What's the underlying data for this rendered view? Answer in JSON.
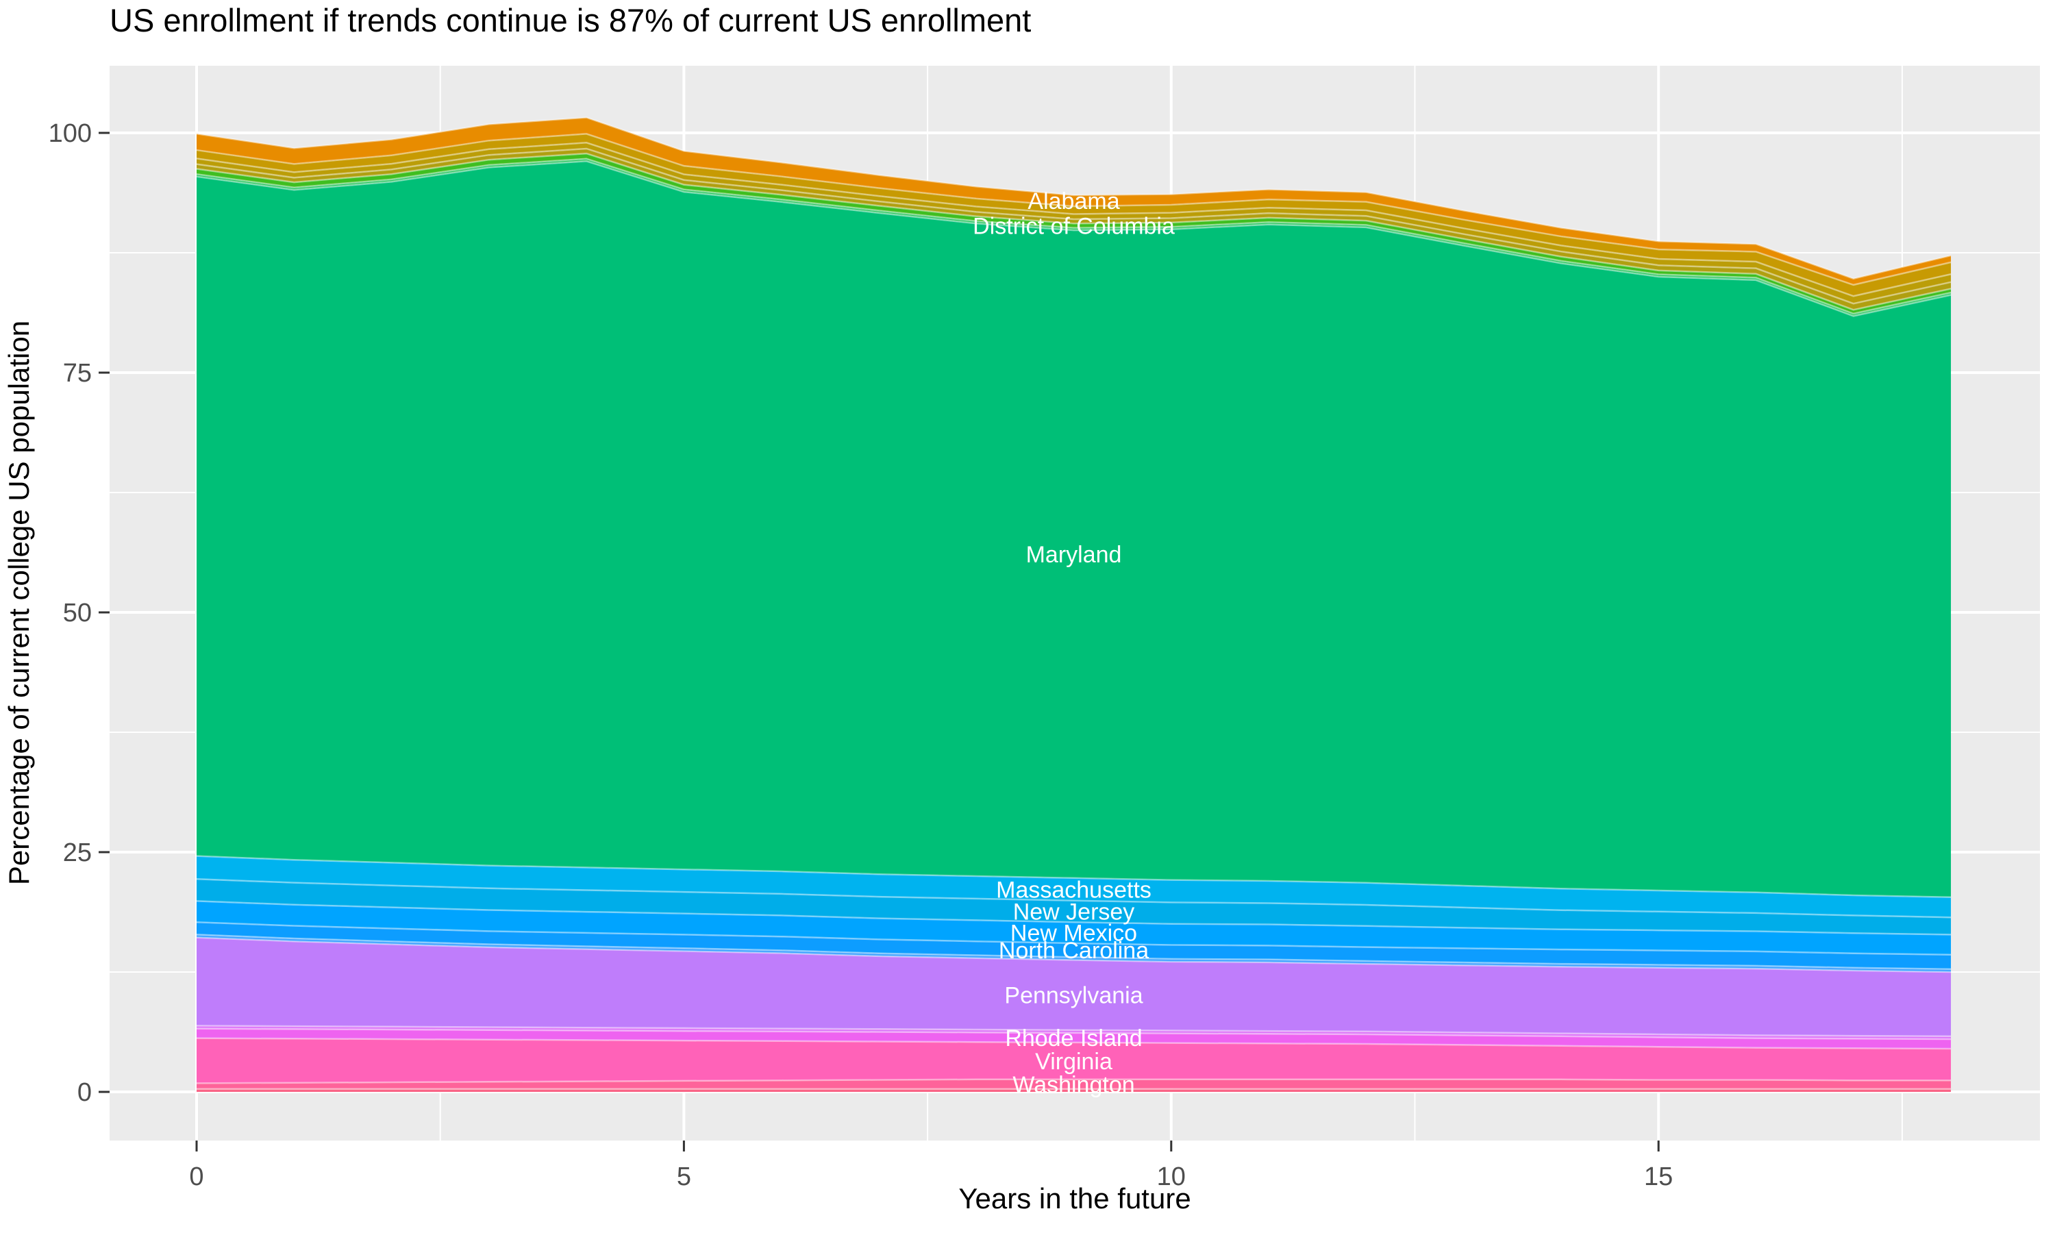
{
  "chart_data": {
    "type": "area",
    "stacked": true,
    "title": "US enrollment if trends continue is 87% of current US enrollment",
    "xlabel": "Years in the future",
    "ylabel": "Percentage of current college US population",
    "x": [
      0,
      1,
      2,
      3,
      4,
      5,
      6,
      7,
      8,
      9,
      10,
      11,
      12,
      13,
      14,
      15,
      16,
      17,
      18
    ],
    "x_ticks": [
      0,
      5,
      10,
      15
    ],
    "x_minor_ticks": [
      2.5,
      7.5,
      12.5,
      17.5
    ],
    "y_ticks": [
      0,
      25,
      50,
      75,
      100
    ],
    "y_minor_ticks": [
      12.5,
      37.5,
      62.5,
      87.5
    ],
    "xlim": [
      -0.9,
      18.9
    ],
    "ylim": [
      -7,
      105
    ],
    "grid": true,
    "legend": "none",
    "label_year": 9,
    "panel_color": "#EBEBEB",
    "gridline_color": "#ffffff",
    "label_text_color": "#ffffff",
    "series": [
      {
        "name": "Alabama",
        "color": "#E88C00",
        "values": [
          1.7,
          1.65,
          1.65,
          1.7,
          1.7,
          1.55,
          1.45,
          1.35,
          1.25,
          1.15,
          1.1,
          1.05,
          1.0,
          0.95,
          0.9,
          0.85,
          0.8,
          0.65,
          0.7
        ]
      },
      {
        "name": "",
        "color": "#C79A03",
        "values": [
          0.88,
          0.86,
          0.88,
          0.9,
          0.92,
          0.88,
          0.86,
          0.83,
          0.83,
          0.81,
          0.83,
          0.86,
          0.88,
          0.9,
          0.95,
          0.99,
          1.04,
          1.17,
          1.24
        ]
      },
      {
        "name": "",
        "color": "#BB9D08",
        "values": [
          0.59,
          0.57,
          0.59,
          0.6,
          0.62,
          0.59,
          0.57,
          0.56,
          0.56,
          0.54,
          0.56,
          0.57,
          0.59,
          0.6,
          0.63,
          0.66,
          0.69,
          0.78,
          0.83
        ]
      },
      {
        "name": "",
        "color": "#B09F11",
        "values": [
          0.49,
          0.48,
          0.49,
          0.5,
          0.51,
          0.49,
          0.48,
          0.46,
          0.46,
          0.45,
          0.46,
          0.48,
          0.49,
          0.5,
          0.53,
          0.55,
          0.58,
          0.65,
          0.69
        ]
      },
      {
        "name": "District of Columbia",
        "color": "#3FBE20",
        "values": [
          0.55,
          0.55,
          0.55,
          0.55,
          0.55,
          0.5,
          0.5,
          0.5,
          0.5,
          0.45,
          0.45,
          0.45,
          0.45,
          0.45,
          0.45,
          0.4,
          0.4,
          0.4,
          0.4
        ]
      },
      {
        "name": "",
        "color": "#25C45C",
        "values": [
          0.25,
          0.25,
          0.25,
          0.25,
          0.25,
          0.25,
          0.25,
          0.25,
          0.25,
          0.25,
          0.25,
          0.25,
          0.25,
          0.25,
          0.25,
          0.25,
          0.25,
          0.25,
          0.25
        ]
      },
      {
        "name": "Maryland",
        "color": "#00BF77",
        "values": [
          70.85,
          69.85,
          71.0,
          72.8,
          73.65,
          70.65,
          69.8,
          68.95,
          68.05,
          67.55,
          67.85,
          68.45,
          68.35,
          66.75,
          65.2,
          64.0,
          63.85,
          60.4,
          62.8
        ]
      },
      {
        "name": "Massachusetts",
        "color": "#00B3EF",
        "values": [
          2.4,
          2.39,
          2.38,
          2.37,
          2.36,
          2.35,
          2.35,
          2.35,
          2.35,
          2.35,
          2.34,
          2.32,
          2.3,
          2.28,
          2.25,
          2.2,
          2.15,
          2.1,
          2.1
        ]
      },
      {
        "name": "New Jersey",
        "color": "#00ADE9",
        "values": [
          2.3,
          2.29,
          2.28,
          2.27,
          2.26,
          2.25,
          2.25,
          2.25,
          2.25,
          2.25,
          2.24,
          2.22,
          2.2,
          2.1,
          2.0,
          1.95,
          1.9,
          1.85,
          1.8
        ]
      },
      {
        "name": "New Mexico",
        "color": "#00A4FF",
        "values": [
          2.2,
          2.2,
          2.2,
          2.2,
          2.2,
          2.2,
          2.2,
          2.2,
          2.2,
          2.2,
          2.2,
          2.2,
          2.2,
          2.15,
          2.1,
          2.1,
          2.1,
          2.1,
          2.1
        ]
      },
      {
        "name": "North Carolina",
        "color": "#0D9DFF",
        "values": [
          1.3,
          1.32,
          1.35,
          1.37,
          1.4,
          1.42,
          1.44,
          1.45,
          1.45,
          1.45,
          1.45,
          1.45,
          1.45,
          1.47,
          1.5,
          1.5,
          1.5,
          1.5,
          1.5
        ]
      },
      {
        "name": "",
        "color": "#3BA0FF",
        "values": [
          0.3,
          0.3,
          0.3,
          0.3,
          0.3,
          0.3,
          0.3,
          0.3,
          0.3,
          0.3,
          0.3,
          0.3,
          0.3,
          0.3,
          0.3,
          0.3,
          0.3,
          0.3,
          0.3
        ]
      },
      {
        "name": "Pennsylvania",
        "color": "#BF7DFB",
        "values": [
          9.2,
          8.85,
          8.59,
          8.34,
          8.18,
          8.03,
          7.86,
          7.6,
          7.45,
          7.3,
          7.17,
          7.16,
          7.05,
          7.0,
          6.95,
          6.95,
          6.95,
          6.8,
          6.7
        ]
      },
      {
        "name": "",
        "color": "#DC72F8",
        "values": [
          0.3,
          0.3,
          0.3,
          0.3,
          0.3,
          0.3,
          0.3,
          0.3,
          0.3,
          0.3,
          0.3,
          0.3,
          0.3,
          0.3,
          0.3,
          0.3,
          0.3,
          0.3,
          0.3
        ]
      },
      {
        "name": "Rhode Island",
        "color": "#EE63F0",
        "values": [
          1.0,
          1.0,
          1.0,
          1.0,
          1.0,
          1.0,
          1.0,
          1.0,
          1.0,
          1.0,
          1.0,
          1.0,
          1.0,
          1.0,
          1.0,
          1.0,
          1.0,
          1.0,
          1.0
        ]
      },
      {
        "name": "Virginia",
        "color": "#FF62B8",
        "values": [
          4.7,
          4.6,
          4.5,
          4.4,
          4.3,
          4.2,
          4.1,
          4.0,
          3.9,
          3.85,
          3.8,
          3.75,
          3.7,
          3.6,
          3.5,
          3.45,
          3.35,
          3.35,
          3.3
        ]
      },
      {
        "name": "Washington",
        "color": "#FE639A",
        "values": [
          0.6,
          0.65,
          0.7,
          0.75,
          0.8,
          0.85,
          0.9,
          0.95,
          1.0,
          1.0,
          1.0,
          1.0,
          1.0,
          1.0,
          1.0,
          0.95,
          0.95,
          0.9,
          0.9
        ]
      },
      {
        "name": "",
        "color": "#F96486",
        "values": [
          0.3,
          0.3,
          0.3,
          0.3,
          0.3,
          0.3,
          0.3,
          0.3,
          0.3,
          0.3,
          0.3,
          0.3,
          0.3,
          0.3,
          0.3,
          0.3,
          0.3,
          0.3,
          0.3
        ]
      }
    ]
  }
}
